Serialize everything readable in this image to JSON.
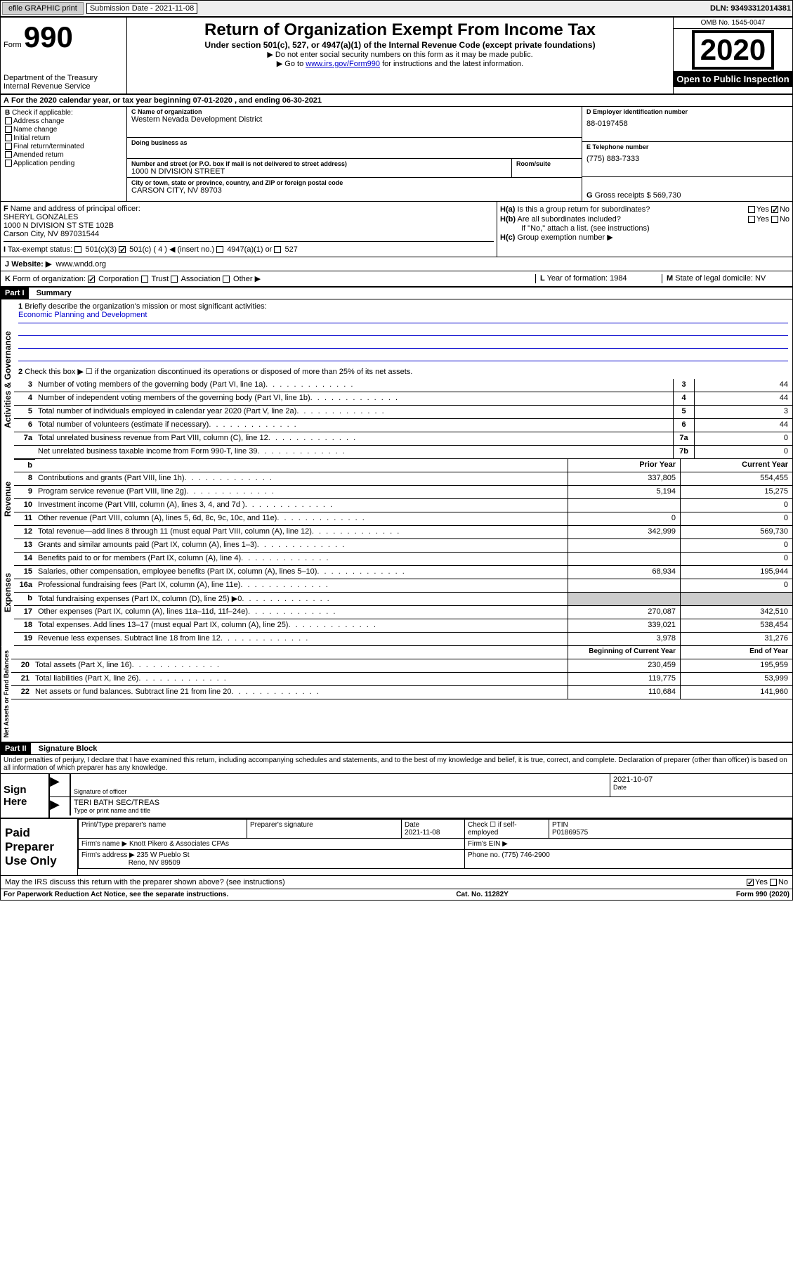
{
  "top": {
    "efile": "efile GRAPHIC print",
    "sub_label": "Submission Date - 2021-11-08",
    "dln": "DLN: 93493312014381"
  },
  "header": {
    "form": "990",
    "form_label": "Form",
    "dept1": "Department of the Treasury",
    "dept2": "Internal Revenue Service",
    "title": "Return of Organization Exempt From Income Tax",
    "sub": "Under section 501(c), 527, or 4947(a)(1) of the Internal Revenue Code (except private foundations)",
    "note1": "Do not enter social security numbers on this form as it may be made public.",
    "note2_pre": "Go to ",
    "note2_link": "www.irs.gov/Form990",
    "note2_post": " for instructions and the latest information.",
    "omb": "OMB No. 1545-0047",
    "year": "2020",
    "open": "Open to Public Inspection"
  },
  "rowA": "For the 2020 calendar year, or tax year beginning 07-01-2020    , and ending 06-30-2021",
  "B": {
    "header": "Check if applicable:",
    "addr": "Address change",
    "name": "Name change",
    "initial": "Initial return",
    "final": "Final return/terminated",
    "amended": "Amended return",
    "app": "Application pending"
  },
  "C": {
    "name_lbl": "Name of organization",
    "name": "Western Nevada Development District",
    "dba_lbl": "Doing business as",
    "addr_lbl": "Number and street (or P.O. box if mail is not delivered to street address)",
    "room_lbl": "Room/suite",
    "addr": "1000 N DIVISION STREET",
    "city_lbl": "City or town, state or province, country, and ZIP or foreign postal code",
    "city": "CARSON CITY, NV  89703"
  },
  "D": {
    "lbl": "Employer identification number",
    "val": "88-0197458"
  },
  "E": {
    "lbl": "Telephone number",
    "val": "(775) 883-7333"
  },
  "G": {
    "lbl": "Gross receipts $",
    "val": "569,730"
  },
  "F": {
    "lbl": "Name and address of principal officer:",
    "name": "SHERYL GONZALES",
    "addr1": "1000 N DIVISION ST STE 102B",
    "addr2": "Carson City, NV  897031544"
  },
  "H": {
    "a": "Is this a group return for subordinates?",
    "b": "Are all subordinates included?",
    "b_note": "If \"No,\" attach a list. (see instructions)",
    "c": "Group exemption number ▶",
    "yes": "Yes",
    "no": "No"
  },
  "I": {
    "lbl": "Tax-exempt status:",
    "c3": "501(c)(3)",
    "c4": "501(c) ( 4 ) ◀ (insert no.)",
    "a1": "4947(a)(1) or",
    "s527": "527"
  },
  "J": {
    "lbl": "Website: ▶",
    "val": "www.wndd.org"
  },
  "K": {
    "lbl": "Form of organization:",
    "corp": "Corporation",
    "trust": "Trust",
    "assoc": "Association",
    "other": "Other ▶"
  },
  "L": {
    "lbl": "Year of formation:",
    "val": "1984"
  },
  "M": {
    "lbl": "State of legal domicile:",
    "val": "NV"
  },
  "partI": {
    "header": "Part I",
    "title": "Summary",
    "q1": "Briefly describe the organization's mission or most significant activities:",
    "mission": "Economic Planning and Development",
    "q2": "Check this box ▶ ☐  if the organization discontinued its operations or disposed of more than 25% of its net assets.",
    "lines_gov": [
      {
        "n": "3",
        "d": "Number of voting members of the governing body (Part VI, line 1a)",
        "bn": "3",
        "v": "44"
      },
      {
        "n": "4",
        "d": "Number of independent voting members of the governing body (Part VI, line 1b)",
        "bn": "4",
        "v": "44"
      },
      {
        "n": "5",
        "d": "Total number of individuals employed in calendar year 2020 (Part V, line 2a)",
        "bn": "5",
        "v": "3"
      },
      {
        "n": "6",
        "d": "Total number of volunteers (estimate if necessary)",
        "bn": "6",
        "v": "44"
      },
      {
        "n": "7a",
        "d": "Total unrelated business revenue from Part VIII, column (C), line 12",
        "bn": "7a",
        "v": "0"
      },
      {
        "n": "",
        "d": "Net unrelated business taxable income from Form 990-T, line 39",
        "bn": "7b",
        "v": "0"
      }
    ],
    "col_h1": "Prior Year",
    "col_h2": "Current Year",
    "rev": [
      {
        "n": "8",
        "d": "Contributions and grants (Part VIII, line 1h)",
        "p": "337,805",
        "c": "554,455"
      },
      {
        "n": "9",
        "d": "Program service revenue (Part VIII, line 2g)",
        "p": "5,194",
        "c": "15,275"
      },
      {
        "n": "10",
        "d": "Investment income (Part VIII, column (A), lines 3, 4, and 7d )",
        "p": "",
        "c": "0"
      },
      {
        "n": "11",
        "d": "Other revenue (Part VIII, column (A), lines 5, 6d, 8c, 9c, 10c, and 11e)",
        "p": "0",
        "c": "0"
      },
      {
        "n": "12",
        "d": "Total revenue—add lines 8 through 11 (must equal Part VIII, column (A), line 12)",
        "p": "342,999",
        "c": "569,730"
      }
    ],
    "exp": [
      {
        "n": "13",
        "d": "Grants and similar amounts paid (Part IX, column (A), lines 1–3)",
        "p": "",
        "c": "0"
      },
      {
        "n": "14",
        "d": "Benefits paid to or for members (Part IX, column (A), line 4)",
        "p": "",
        "c": "0"
      },
      {
        "n": "15",
        "d": "Salaries, other compensation, employee benefits (Part IX, column (A), lines 5–10)",
        "p": "68,934",
        "c": "195,944"
      },
      {
        "n": "16a",
        "d": "Professional fundraising fees (Part IX, column (A), line 11e)",
        "p": "",
        "c": "0"
      },
      {
        "n": "b",
        "d": "Total fundraising expenses (Part IX, column (D), line 25) ▶0",
        "p": "shaded",
        "c": "shaded"
      },
      {
        "n": "17",
        "d": "Other expenses (Part IX, column (A), lines 11a–11d, 11f–24e)",
        "p": "270,087",
        "c": "342,510"
      },
      {
        "n": "18",
        "d": "Total expenses. Add lines 13–17 (must equal Part IX, column (A), line 25)",
        "p": "339,021",
        "c": "538,454"
      },
      {
        "n": "19",
        "d": "Revenue less expenses. Subtract line 18 from line 12",
        "p": "3,978",
        "c": "31,276"
      }
    ],
    "col_h3": "Beginning of Current Year",
    "col_h4": "End of Year",
    "net": [
      {
        "n": "20",
        "d": "Total assets (Part X, line 16)",
        "p": "230,459",
        "c": "195,959"
      },
      {
        "n": "21",
        "d": "Total liabilities (Part X, line 26)",
        "p": "119,775",
        "c": "53,999"
      },
      {
        "n": "22",
        "d": "Net assets or fund balances. Subtract line 21 from line 20",
        "p": "110,684",
        "c": "141,960"
      }
    ],
    "vlab_gov": "Activities & Governance",
    "vlab_rev": "Revenue",
    "vlab_exp": "Expenses",
    "vlab_net": "Net Assets or Fund Balances"
  },
  "partII": {
    "header": "Part II",
    "title": "Signature Block",
    "perjury": "Under penalties of perjury, I declare that I have examined this return, including accompanying schedules and statements, and to the best of my knowledge and belief, it is true, correct, and complete. Declaration of preparer (other than officer) is based on all information of which preparer has any knowledge.",
    "sign_here": "Sign Here",
    "sig_officer": "Signature of officer",
    "sig_date_lbl": "Date",
    "sig_date": "2021-10-07",
    "sig_name": "TERI BATH SEC/TREAS",
    "sig_type": "Type or print name and title",
    "paid": "Paid Preparer Use Only",
    "prep_name_lbl": "Print/Type preparer's name",
    "prep_sig_lbl": "Preparer's signature",
    "prep_date_lbl": "Date",
    "prep_date": "2021-11-08",
    "prep_check": "Check ☐ if self-employed",
    "ptin_lbl": "PTIN",
    "ptin": "P01869575",
    "firm_name_lbl": "Firm's name    ▶",
    "firm_name": "Knott Pikero & Associates CPAs",
    "firm_ein_lbl": "Firm's EIN ▶",
    "firm_addr_lbl": "Firm's address ▶",
    "firm_addr1": "235 W Pueblo St",
    "firm_addr2": "Reno, NV  89509",
    "phone_lbl": "Phone no.",
    "phone": "(775) 746-2900",
    "irs_q": "May the IRS discuss this return with the preparer shown above? (see instructions)"
  },
  "footer": {
    "paperwork": "For Paperwork Reduction Act Notice, see the separate instructions.",
    "cat": "Cat. No. 11282Y",
    "form": "Form 990 (2020)"
  }
}
